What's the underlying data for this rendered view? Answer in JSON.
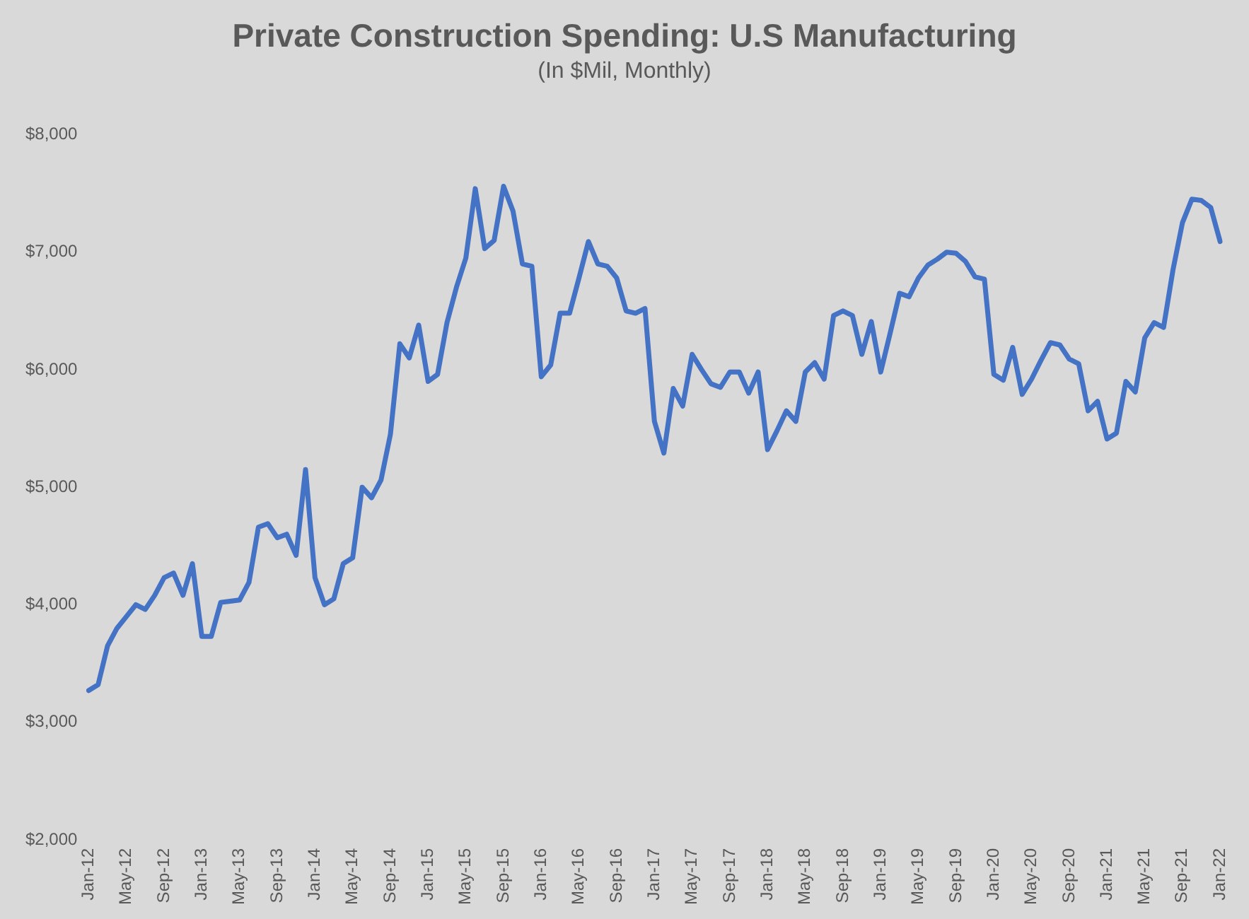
{
  "chart_data": {
    "type": "line",
    "title": "Private Construction Spending: U.S Manufacturing",
    "subtitle": "(In $Mil, Monthly)",
    "categories": [
      "Jan-12",
      null,
      null,
      null,
      "May-12",
      null,
      null,
      null,
      "Sep-12",
      null,
      null,
      null,
      "Jan-13",
      null,
      null,
      null,
      "May-13",
      null,
      null,
      null,
      "Sep-13",
      null,
      null,
      null,
      "Jan-14",
      null,
      null,
      null,
      "May-14",
      null,
      null,
      null,
      "Sep-14",
      null,
      null,
      null,
      "Jan-15",
      null,
      null,
      null,
      "May-15",
      null,
      null,
      null,
      "Sep-15",
      null,
      null,
      null,
      "Jan-16",
      null,
      null,
      null,
      "May-16",
      null,
      null,
      null,
      "Sep-16",
      null,
      null,
      null,
      "Jan-17",
      null,
      null,
      null,
      "May-17",
      null,
      null,
      null,
      "Sep-17",
      null,
      null,
      null,
      "Jan-18",
      null,
      null,
      null,
      "May-18",
      null,
      null,
      null,
      "Sep-18",
      null,
      null,
      null,
      "Jan-19",
      null,
      null,
      null,
      "May-19",
      null,
      null,
      null,
      "Sep-19",
      null,
      null,
      null,
      "Jan-20",
      null,
      null,
      null,
      "May-20",
      null,
      null,
      null,
      "Sep-20",
      null,
      null,
      null,
      "Jan-21",
      null,
      null,
      null,
      "May-21",
      null,
      null,
      null,
      "Sep-21",
      null,
      null,
      null,
      "Jan-22"
    ],
    "series": [
      {
        "color": "#4472c4",
        "values": [
          3270,
          3320,
          3650,
          3800,
          3900,
          4000,
          3960,
          4080,
          4230,
          4270,
          4080,
          4350,
          3730,
          3730,
          4020,
          4030,
          4040,
          4190,
          4660,
          4690,
          4570,
          4600,
          4420,
          5150,
          4230,
          4000,
          4050,
          4350,
          4400,
          5000,
          4910,
          5060,
          5450,
          6220,
          6100,
          6380,
          5900,
          5960,
          6400,
          6700,
          6950,
          7540,
          7030,
          7100,
          7560,
          7350,
          6900,
          6880,
          5940,
          6040,
          6480,
          6480,
          6780,
          7090,
          6900,
          6880,
          6780,
          6500,
          6480,
          6520,
          5560,
          5290,
          5840,
          5690,
          6130,
          6000,
          5880,
          5850,
          5980,
          5980,
          5800,
          5980,
          5320,
          5480,
          5650,
          5560,
          5980,
          6060,
          5920,
          6460,
          6500,
          6460,
          6130,
          6410,
          5980,
          6310,
          6650,
          6620,
          6780,
          6890,
          6940,
          7000,
          6990,
          6920,
          6790,
          6770,
          5960,
          5910,
          6190,
          5790,
          5920,
          6080,
          6230,
          6210,
          6090,
          6050,
          5650,
          5730,
          5410,
          5460,
          5900,
          5810,
          6270,
          6400,
          6360,
          6850,
          7250,
          7450,
          7440,
          7380,
          7090
        ]
      }
    ],
    "ylim": [
      2000,
      8000
    ],
    "yticks": [
      {
        "value": 2000,
        "label": "$2,000"
      },
      {
        "value": 3000,
        "label": "$3,000"
      },
      {
        "value": 4000,
        "label": "$4,000"
      },
      {
        "value": 5000,
        "label": "$5,000"
      },
      {
        "value": 6000,
        "label": "$6,000"
      },
      {
        "value": 7000,
        "label": "$7,000"
      },
      {
        "value": 8000,
        "label": "$8,000"
      }
    ],
    "grid": false,
    "legend": false,
    "marker": "none"
  }
}
